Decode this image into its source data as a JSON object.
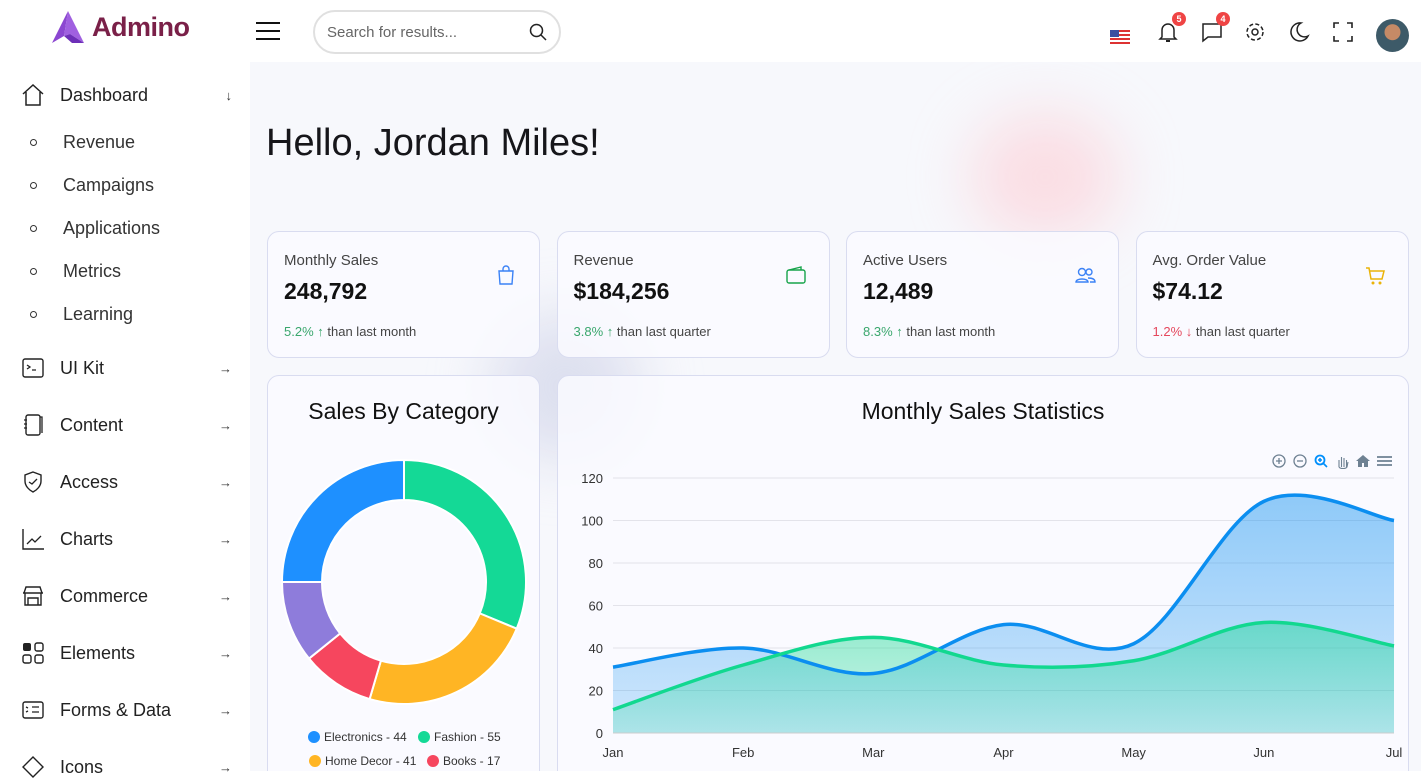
{
  "brand": {
    "name": "Admino",
    "color": "#7a2048",
    "logo_color": "#8b46d1"
  },
  "header": {
    "search_placeholder": "Search for results...",
    "notifications_count": "5",
    "messages_count": "4",
    "icons": [
      "menu-icon",
      "search-icon",
      "us-flag-icon",
      "bell-icon",
      "chat-icon",
      "gear-icon",
      "moon-icon",
      "fullscreen-icon",
      "avatar"
    ]
  },
  "sidebar": {
    "dashboard": {
      "label": "Dashboard",
      "children": [
        "Revenue",
        "Campaigns",
        "Applications",
        "Metrics",
        "Learning"
      ]
    },
    "items": [
      {
        "label": "UI Kit",
        "icon": "terminal-icon"
      },
      {
        "label": "Content",
        "icon": "notebook-icon"
      },
      {
        "label": "Access",
        "icon": "shield-check-icon"
      },
      {
        "label": "Charts",
        "icon": "line-chart-icon"
      },
      {
        "label": "Commerce",
        "icon": "store-icon"
      },
      {
        "label": "Elements",
        "icon": "grid-check-icon"
      },
      {
        "label": "Forms & Data",
        "icon": "form-list-icon"
      },
      {
        "label": "Icons",
        "icon": "diamond-icon"
      }
    ]
  },
  "main": {
    "greeting": "Hello, Jordan Miles!",
    "stats": [
      {
        "label": "Monthly Sales",
        "value": "248,792",
        "change": "5.2%",
        "direction": "up",
        "suffix": "than last month",
        "icon": "shopping-bag-icon",
        "color": "#3b82f6"
      },
      {
        "label": "Revenue",
        "value": "$184,256",
        "change": "3.8%",
        "direction": "up",
        "suffix": "than last quarter",
        "icon": "wallet-icon",
        "color": "#16a34a"
      },
      {
        "label": "Active Users",
        "value": "12,489",
        "change": "8.3%",
        "direction": "up",
        "suffix": "than last month",
        "icon": "users-icon",
        "color": "#3b82f6"
      },
      {
        "label": "Avg. Order Value",
        "value": "$74.12",
        "change": "1.2%",
        "direction": "down",
        "suffix": "than last quarter",
        "icon": "cart-icon",
        "color": "#eab308"
      }
    ]
  },
  "chart_data": [
    {
      "type": "pie",
      "donut": true,
      "title": "Sales By Category",
      "slices": [
        {
          "name": "Electronics",
          "value": 44,
          "color": "#1e90ff",
          "legend": "Electronics - 44"
        },
        {
          "name": "Fashion",
          "value": 55,
          "color": "#14d996",
          "legend": "Fashion - 55"
        },
        {
          "name": "Home Decor",
          "value": 41,
          "color": "#ffb524",
          "legend": "Home Decor - 41"
        },
        {
          "name": "Books",
          "value": 17,
          "color": "#f6465e",
          "legend": "Books - 17"
        },
        {
          "value": 19,
          "color": "#8e7cdb"
        }
      ],
      "legend_placement": "bottom"
    },
    {
      "type": "area",
      "title": "Monthly Sales Statistics",
      "categories": [
        "Jan",
        "Feb",
        "Mar",
        "Apr",
        "May",
        "Jun",
        "Jul"
      ],
      "ylim": [
        0,
        120
      ],
      "yticks": [
        0,
        20,
        40,
        60,
        80,
        100,
        120
      ],
      "grid": true,
      "series": [
        {
          "values": [
            31,
            40,
            28,
            51,
            42,
            109,
            100
          ],
          "color": "#0b8ef0"
        },
        {
          "values": [
            11,
            32,
            45,
            32,
            34,
            52,
            41
          ],
          "color": "#12d88f"
        }
      ],
      "toolbar": [
        "zoom-in-icon",
        "zoom-out-icon",
        "selection-zoom-icon",
        "pan-icon",
        "reset-home-icon",
        "menu-icon"
      ]
    }
  ]
}
